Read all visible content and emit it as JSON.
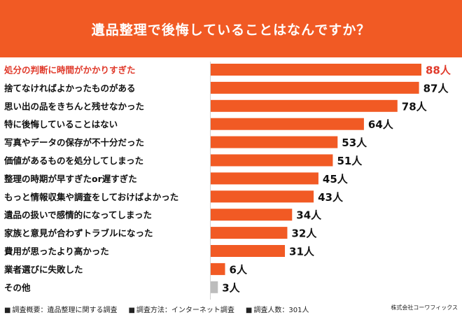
{
  "header": {
    "title": "遺品整理で後悔していることはなんですか？"
  },
  "chart_data": {
    "type": "bar",
    "orientation": "horizontal",
    "categories": [
      "処分の判断に時間がかかりすぎた",
      "捨てなければよかったものがある",
      "思い出の品をきちんと残せなかった",
      "特に後悔していることはない",
      "写真やデータの保存が不十分だった",
      "価値があるものを処分してしまった",
      "整理の時期が早すぎたor遅すぎた",
      "もっと情報収集や調査をしておけばよかった",
      "遺品の扱いで感情的になってしまった",
      "家族と意見が合わずトラブルになった",
      "費用が思ったより高かった",
      "業者選びに失敗した",
      "その他"
    ],
    "values": [
      88,
      87,
      78,
      64,
      53,
      51,
      45,
      43,
      34,
      32,
      31,
      6,
      3
    ],
    "value_unit": "人",
    "xlim": [
      0,
      88
    ],
    "grid": false,
    "colors": {
      "bar": "#f15a24",
      "other_bar": "#bdbdbd",
      "highlight_label": "#e03a2b",
      "label": "#111111"
    },
    "highlight_index": 0
  },
  "footer": {
    "survey_summary": "調査概要：遺品整理に関する調査",
    "survey_method": "調査方法：インターネット調査",
    "respondents": "調査人数：301人",
    "company": "株式会社コーワフィックス"
  }
}
